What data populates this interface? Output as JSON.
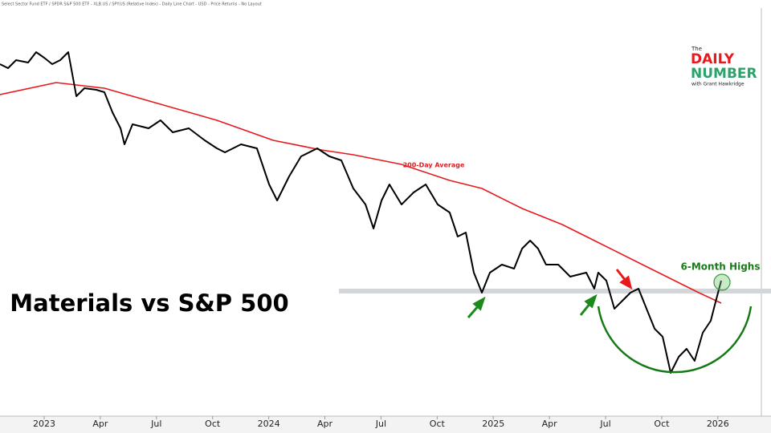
{
  "chart_data": {
    "type": "line",
    "header": "Select Sector Fund ETF / SPDR S&P 500 ETF - XLB.US / SPY.US (Relative Index) - Daily Line Chart - USD - Price Returns - No Layout",
    "title": "Materials vs S&P 500",
    "xlim": [
      -2.36,
      38.84
    ],
    "ylim": [
      0,
      51
    ],
    "xticks": [
      {
        "value": 0,
        "label": "2023"
      },
      {
        "value": 3,
        "label": "Apr"
      },
      {
        "value": 6,
        "label": "Jul"
      },
      {
        "value": 9,
        "label": "Oct"
      },
      {
        "value": 12,
        "label": "2024"
      },
      {
        "value": 15,
        "label": "Apr"
      },
      {
        "value": 18,
        "label": "Jul"
      },
      {
        "value": 21,
        "label": "Oct"
      },
      {
        "value": 24,
        "label": "2025"
      },
      {
        "value": 27,
        "label": "Apr"
      },
      {
        "value": 30,
        "label": "Jul"
      },
      {
        "value": 33,
        "label": "Oct"
      },
      {
        "value": 36,
        "label": "2026"
      }
    ],
    "series": [
      {
        "name": "XLB / SPY",
        "color": "#000000",
        "x": [
          -2.36,
          -1.93,
          -1.5,
          -0.86,
          -0.43,
          0,
          0.43,
          0.86,
          1.29,
          1.72,
          2.15,
          2.79,
          3.22,
          3.65,
          4.08,
          4.29,
          4.72,
          5.58,
          6.22,
          6.87,
          7.73,
          8.58,
          9.23,
          9.66,
          10.52,
          11.37,
          12.02,
          12.45,
          13.09,
          13.73,
          14.59,
          15.24,
          15.88,
          16.52,
          17.17,
          17.6,
          18.03,
          18.45,
          19.1,
          19.74,
          20.39,
          21.03,
          21.67,
          22.1,
          22.53,
          22.96,
          23.39,
          23.82,
          24.46,
          25.11,
          25.54,
          25.97,
          26.39,
          26.82,
          27.47,
          28.11,
          28.97,
          29.4,
          29.61,
          30.04,
          30.47,
          30.9,
          31.33,
          31.76,
          32.19,
          32.62,
          33.05,
          33.48,
          33.91,
          34.33,
          34.76,
          35.19,
          35.62,
          35.84,
          36.18
        ],
        "values": [
          44,
          43.5,
          44.5,
          44.2,
          45.5,
          44.8,
          44,
          44.5,
          45.5,
          40,
          41,
          40.8,
          40.5,
          38,
          36,
          34,
          36.5,
          36,
          37,
          35.5,
          36,
          34.5,
          33.5,
          33,
          34,
          33.5,
          29,
          27,
          30,
          32.5,
          33.5,
          32.5,
          32,
          28.5,
          26.5,
          23.5,
          27,
          29,
          26.5,
          28,
          29,
          26.5,
          25.5,
          22.5,
          23,
          18,
          15.5,
          18,
          19,
          18.5,
          21,
          22,
          21,
          19,
          19,
          17.5,
          18,
          16,
          18,
          17,
          13.5,
          14.5,
          15.5,
          16,
          13.5,
          11,
          10,
          5.5,
          7.5,
          8.5,
          7,
          10.5,
          12,
          14,
          17
        ]
      },
      {
        "name": "200-Day Average",
        "color": "#e8191c",
        "x": [
          -2.36,
          0.64,
          3.22,
          6.22,
          9.23,
          12.24,
          14.81,
          16.52,
          19.1,
          21.67,
          23.39,
          25.54,
          27.68,
          29.4,
          31.97,
          33.69,
          34.98,
          36.18
        ],
        "values": [
          40.2,
          41.7,
          41,
          39,
          37,
          34.5,
          33.3,
          32.7,
          31.5,
          29.5,
          28.5,
          26,
          24,
          22,
          19,
          17,
          15.5,
          14.2
        ]
      }
    ],
    "reference_line": {
      "value": 15.7,
      "xstart": 15.75,
      "color": "#d3d6db"
    },
    "annotations": [
      "6-Month Highs"
    ]
  },
  "logo": {
    "top": "The",
    "line1": "DAILY",
    "line2": "NUMBER",
    "byline": "with Grant Hawkridge"
  }
}
